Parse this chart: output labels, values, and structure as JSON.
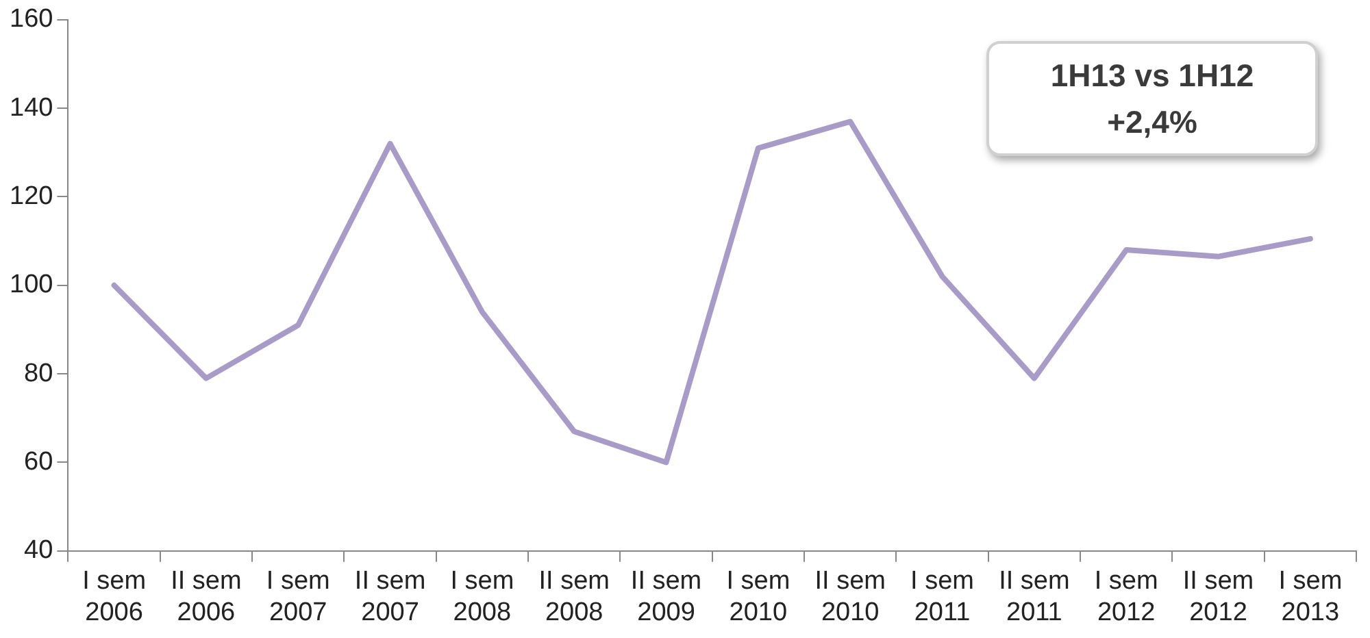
{
  "chart_data": {
    "type": "line",
    "categories": [
      "I sem 2006",
      "II sem 2006",
      "I sem 2007",
      "II sem 2007",
      "I sem 2008",
      "II sem 2008",
      "II sem 2009",
      "I sem 2010",
      "II sem 2010",
      "I sem 2011",
      "II sem 2011",
      "I sem 2012",
      "II sem 2012",
      "I sem 2013"
    ],
    "series": [
      {
        "color": "#a99bc8",
        "values": [
          100,
          79,
          91,
          132,
          94,
          67,
          60,
          131,
          137,
          102,
          79,
          108,
          106.5,
          110.5
        ]
      }
    ],
    "ylim": [
      40,
      160
    ],
    "yticks": [
      40,
      60,
      80,
      100,
      120,
      140,
      160
    ],
    "grid": false,
    "legend": false,
    "marker": "none",
    "line_style": "solid",
    "annotations": [
      "1H13 vs 1H12\n+2,4%"
    ]
  }
}
